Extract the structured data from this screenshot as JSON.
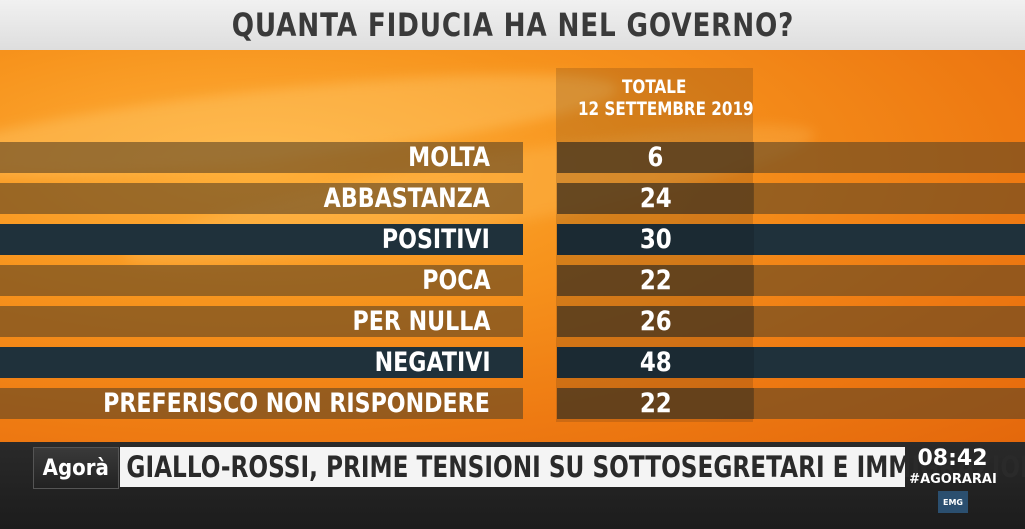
{
  "title": "QUANTA FIDUCIA HA NEL GOVERNO?",
  "column_header": {
    "line1": "TOTALE",
    "line2": "12 SETTEMBRE 2019"
  },
  "rows": [
    {
      "label": "MOLTA",
      "value": "6",
      "style": "soft"
    },
    {
      "label": "ABBASTANZA",
      "value": "24",
      "style": "soft"
    },
    {
      "label": "POSITIVI",
      "value": "30",
      "style": "dark"
    },
    {
      "label": "POCA",
      "value": "22",
      "style": "soft"
    },
    {
      "label": "PER NULLA",
      "value": "26",
      "style": "soft"
    },
    {
      "label": "NEGATIVI",
      "value": "48",
      "style": "dark"
    },
    {
      "label": "PREFERISCO NON RISPONDERE",
      "value": "22",
      "style": "soft"
    }
  ],
  "ticker": {
    "logo": "Agorà",
    "headline": "GIALLO-ROSSI, PRIME TENSIONI SU SOTTOSEGRETARI E IMMIGRAZIONE",
    "time": "08:42",
    "hashtag": "#AGORARAI",
    "badge": "EMG"
  },
  "colors": {
    "background_orange": "#f7941d",
    "title_bar": "#e8e8e8",
    "dark_row": "#1f313b"
  }
}
